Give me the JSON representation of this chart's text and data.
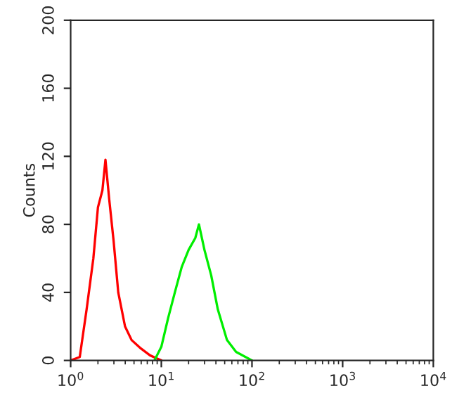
{
  "chart_data": {
    "type": "line",
    "ylabel": "Counts",
    "log": "x",
    "grid": false,
    "xlim": [
      1,
      10000
    ],
    "ylim": [
      0,
      200
    ],
    "xticks": [
      {
        "value": 1,
        "label": "10$^{0}$"
      },
      {
        "value": 10,
        "label": "10$^{1}$"
      },
      {
        "value": 100,
        "label": "10$^{2}$"
      },
      {
        "value": 1000,
        "label": "10$^{3}$"
      },
      {
        "value": 10000,
        "label": "10$^{4}$"
      }
    ],
    "yticks": [
      0,
      40,
      80,
      120,
      160,
      200
    ],
    "series": [
      {
        "color": "#ff0000",
        "x": [
          1,
          1.26,
          1.5,
          1.78,
          2.0,
          2.24,
          2.42,
          2.66,
          2.98,
          3.35,
          3.98,
          4.7,
          5.96,
          7.5,
          10
        ],
        "values": [
          0,
          2,
          30,
          60,
          90,
          100,
          118,
          95,
          70,
          40,
          20,
          12,
          7,
          3,
          0
        ]
      },
      {
        "color": "#00ee00",
        "x": [
          8.4,
          10,
          11.9,
          14.1,
          16.8,
          20,
          23.7,
          26,
          29.9,
          35.5,
          42,
          53,
          66.8,
          100
        ],
        "values": [
          0,
          8,
          25,
          40,
          55,
          65,
          72,
          80,
          65,
          50,
          30,
          12,
          5,
          0
        ]
      }
    ]
  }
}
